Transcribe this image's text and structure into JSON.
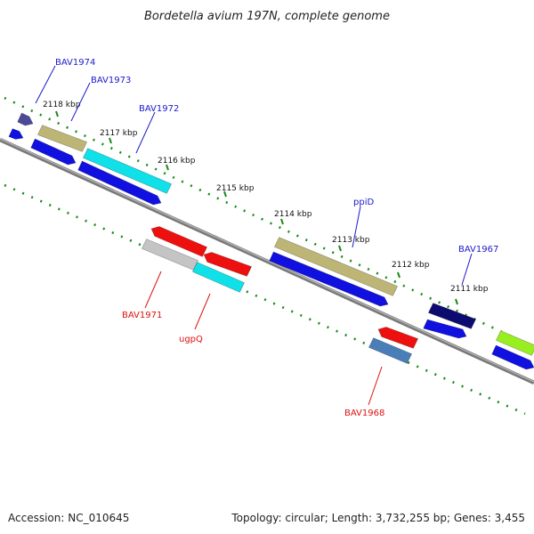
{
  "title": "Bordetella avium 197N, complete genome",
  "footer": {
    "accession": "Accession: NC_010645",
    "summary": "Topology: circular; Length: 3,732,255 bp; Genes: 3,455"
  },
  "colors": {
    "forward_label": "#1a1acc",
    "reverse_label": "#dd1111",
    "backbone": "#7a7a7a",
    "tick": "#1a8a1a",
    "cds_blue": "#1010e0"
  },
  "ticks": [
    "2118 kbp",
    "2117 kbp",
    "2116 kbp",
    "2115 kbp",
    "2114 kbp",
    "2113 kbp",
    "2112 kbp",
    "2111 kbp"
  ],
  "gene_labels": {
    "forward": [
      "BAV1974",
      "BAV1973",
      "BAV1972",
      "ppiD",
      "BAV1967"
    ],
    "reverse": [
      "BAV1971",
      "ugpQ",
      "BAV1968"
    ]
  }
}
